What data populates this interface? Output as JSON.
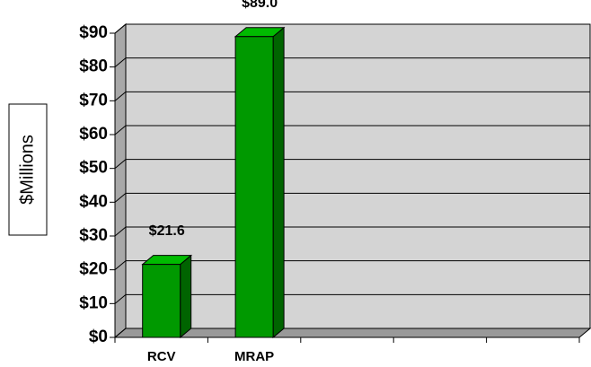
{
  "chart_data": {
    "type": "bar3d",
    "y_label": "$Millions",
    "categories": [
      "RCV",
      "MRAP",
      null,
      null,
      null
    ],
    "values": [
      21.6,
      89.0,
      null,
      null,
      null
    ],
    "value_labels": [
      "$21.6",
      "$89.0",
      null,
      null,
      null
    ],
    "color": "#009900",
    "ylim": [
      0,
      90
    ],
    "yticks": [
      {
        "value": 0,
        "label": "$0"
      },
      {
        "value": 10,
        "label": "$10"
      },
      {
        "value": 20,
        "label": "$20"
      },
      {
        "value": 30,
        "label": "$30"
      },
      {
        "value": 40,
        "label": "$40"
      },
      {
        "value": 50,
        "label": "$50"
      },
      {
        "value": 60,
        "label": "$60"
      },
      {
        "value": 70,
        "label": "$70"
      },
      {
        "value": 80,
        "label": "$80"
      },
      {
        "value": 90,
        "label": "$90"
      }
    ],
    "grid": true
  }
}
